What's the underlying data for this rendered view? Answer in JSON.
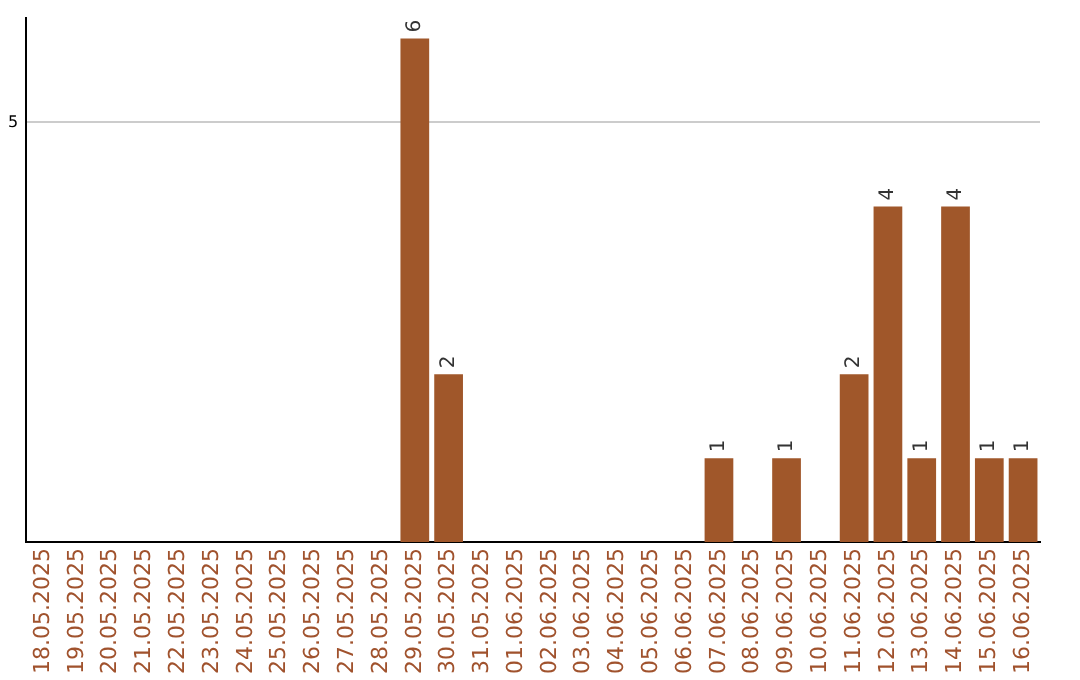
{
  "chart_data": {
    "type": "bar",
    "categories": [
      "18.05.2025",
      "19.05.2025",
      "20.05.2025",
      "21.05.2025",
      "22.05.2025",
      "23.05.2025",
      "24.05.2025",
      "25.05.2025",
      "26.05.2025",
      "27.05.2025",
      "28.05.2025",
      "29.05.2025",
      "30.05.2025",
      "31.05.2025",
      "01.06.2025",
      "02.06.2025",
      "03.06.2025",
      "04.06.2025",
      "05.06.2025",
      "06.06.2025",
      "07.06.2025",
      "08.06.2025",
      "09.06.2025",
      "10.06.2025",
      "11.06.2025",
      "12.06.2025",
      "13.06.2025",
      "14.06.2025",
      "15.06.2025",
      "16.06.2025"
    ],
    "values": [
      0,
      0,
      0,
      0,
      0,
      0,
      0,
      0,
      0,
      0,
      0,
      6,
      2,
      0,
      0,
      0,
      0,
      0,
      0,
      0,
      1,
      0,
      1,
      0,
      2,
      4,
      1,
      4,
      1,
      1
    ],
    "value_labels": [
      null,
      null,
      null,
      null,
      null,
      null,
      null,
      null,
      null,
      null,
      null,
      "6",
      "2",
      null,
      null,
      null,
      null,
      null,
      null,
      null,
      "1",
      null,
      "1",
      null,
      "2",
      "4",
      "1",
      "4",
      "1",
      "1"
    ],
    "color": "#a0572a",
    "ylim": [
      0,
      6.25
    ],
    "yticks": [
      5
    ],
    "grid": "y"
  }
}
